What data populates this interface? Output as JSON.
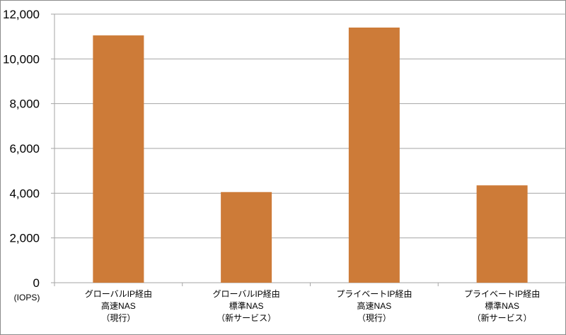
{
  "chart_data": {
    "type": "bar",
    "categories": [
      [
        "グローバルIP経由",
        "高速NAS",
        "（現行）"
      ],
      [
        "グローバルIP経由",
        "標準NAS",
        "（新サービス）"
      ],
      [
        "プライベートIP経由",
        "高速NAS",
        "（現行）"
      ],
      [
        "プライベートIP経由",
        "標準NAS",
        "（新サービス）"
      ]
    ],
    "values": [
      11050,
      4050,
      11400,
      4350
    ],
    "ylim": [
      0,
      12000
    ],
    "yticks": [
      0,
      2000,
      4000,
      6000,
      8000,
      10000,
      12000
    ],
    "ytick_labels": [
      "0",
      "2,000",
      "4,000",
      "6,000",
      "8,000",
      "10,000",
      "12,000"
    ],
    "yunit": "(IOPS)",
    "grid": true,
    "legend": "none",
    "bar_color": "#CD7B38",
    "grid_color": "#A6A6A6"
  }
}
